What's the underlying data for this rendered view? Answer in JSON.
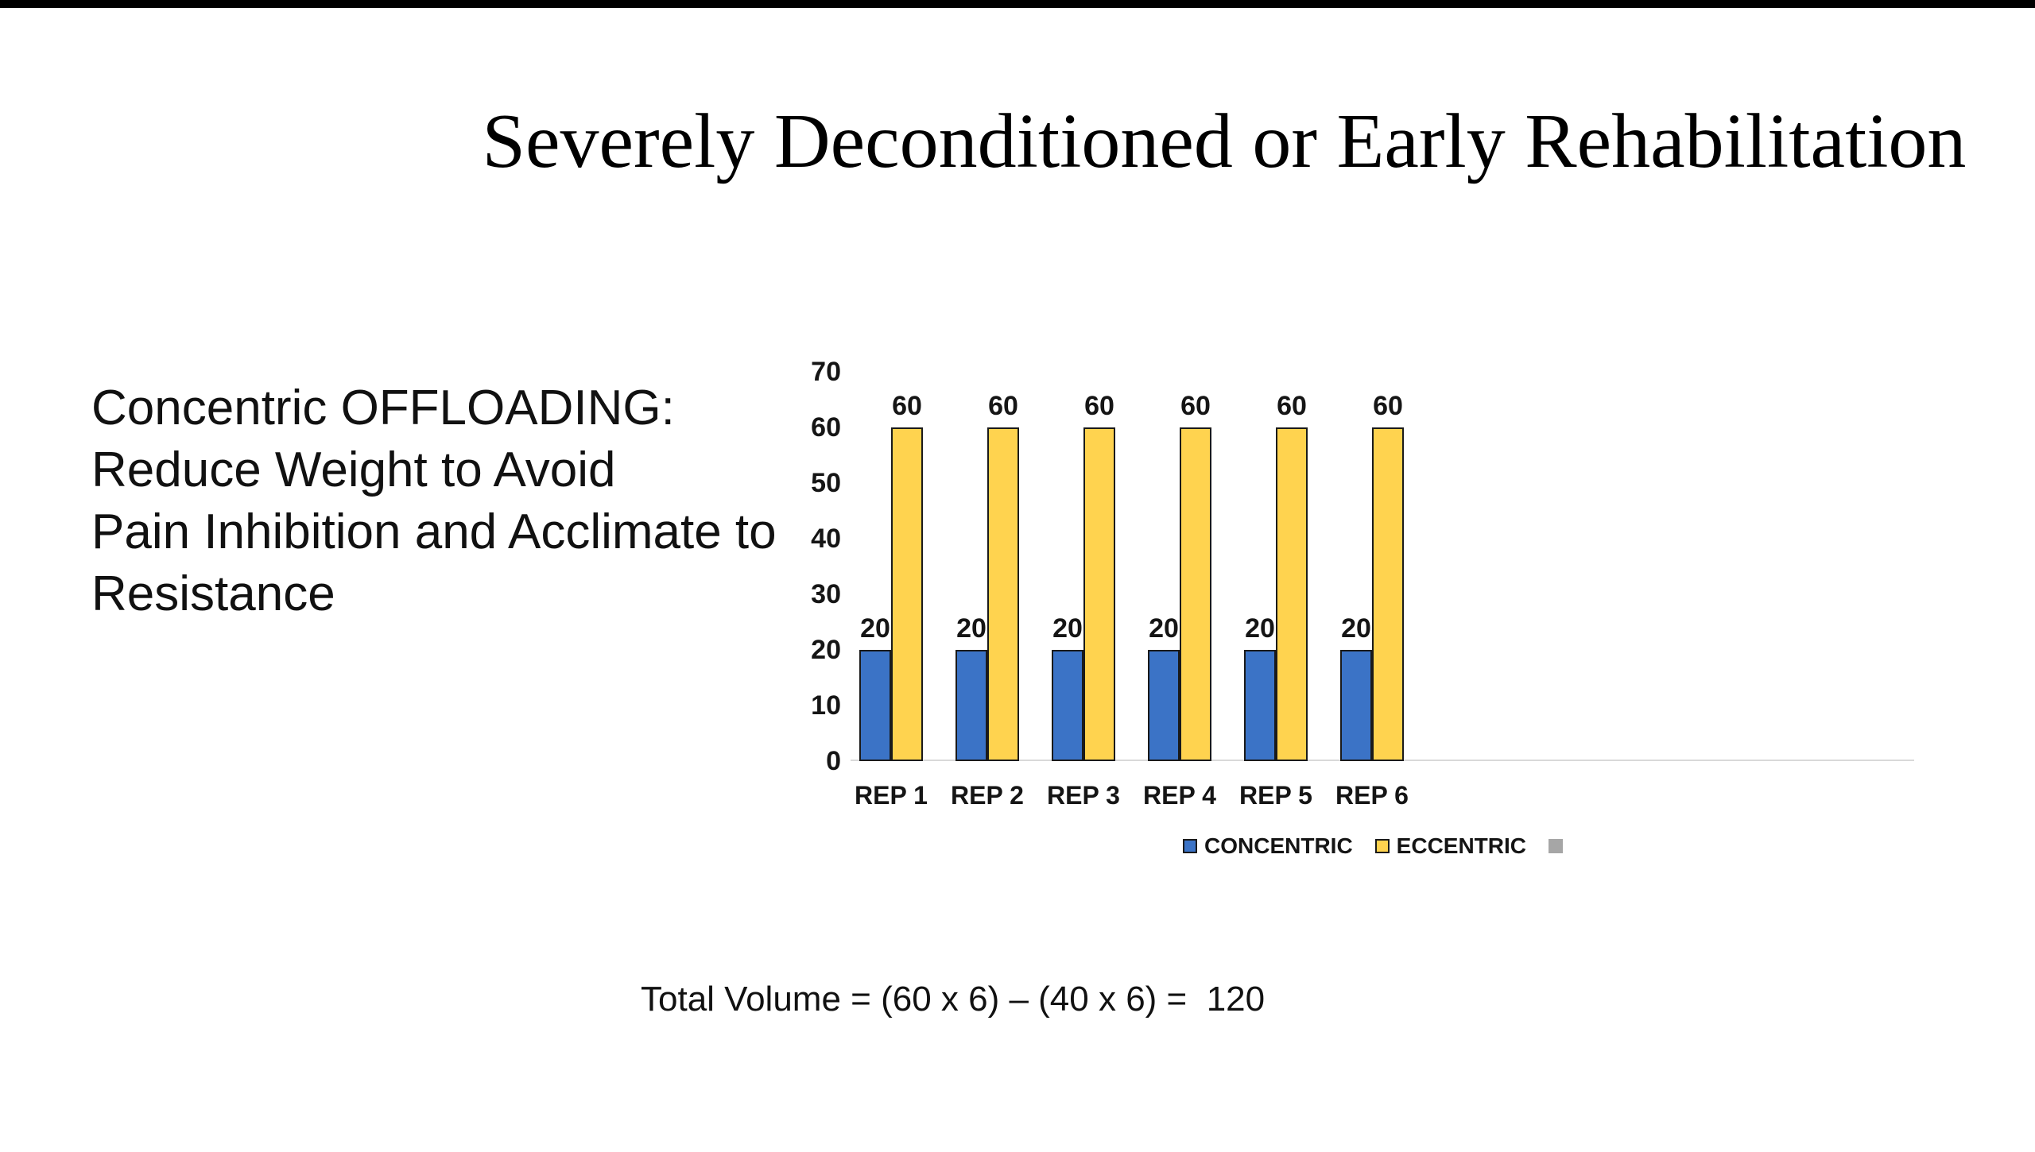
{
  "slide": {
    "title": "Severely Deconditioned or Early Rehabilitation",
    "left_text": {
      "lines": [
        "Concentric OFFLOADING:",
        "Reduce Weight to Avoid",
        "Pain Inhibition and Acclimate to",
        "Resistance"
      ]
    },
    "formula": "Total Volume = (60 x 6) – (40 x 6) =  120",
    "top_bar_color": "#000000"
  },
  "chart_data": {
    "type": "bar",
    "title": "",
    "xlabel": "",
    "ylabel": "",
    "categories": [
      "REP 1",
      "REP 2",
      "REP 3",
      "REP 4",
      "REP 5",
      "REP 6"
    ],
    "series": [
      {
        "name": "CONCENTRIC",
        "color": "#3b73c6",
        "values": [
          20,
          20,
          20,
          20,
          20,
          20
        ]
      },
      {
        "name": "ECCENTRIC",
        "color": "#ffd34f",
        "values": [
          60,
          60,
          60,
          60,
          60,
          60
        ]
      },
      {
        "name": "",
        "color": "#a6a6a6",
        "values": []
      }
    ],
    "data_labels": true,
    "ylim": [
      0,
      70
    ],
    "yticks": [
      0,
      10,
      20,
      30,
      40,
      50,
      60,
      70
    ],
    "grid": false,
    "legend_position": "bottom",
    "axis_line_color": "#d9d9d9",
    "bar_outline_color": "#1a1a1a"
  }
}
